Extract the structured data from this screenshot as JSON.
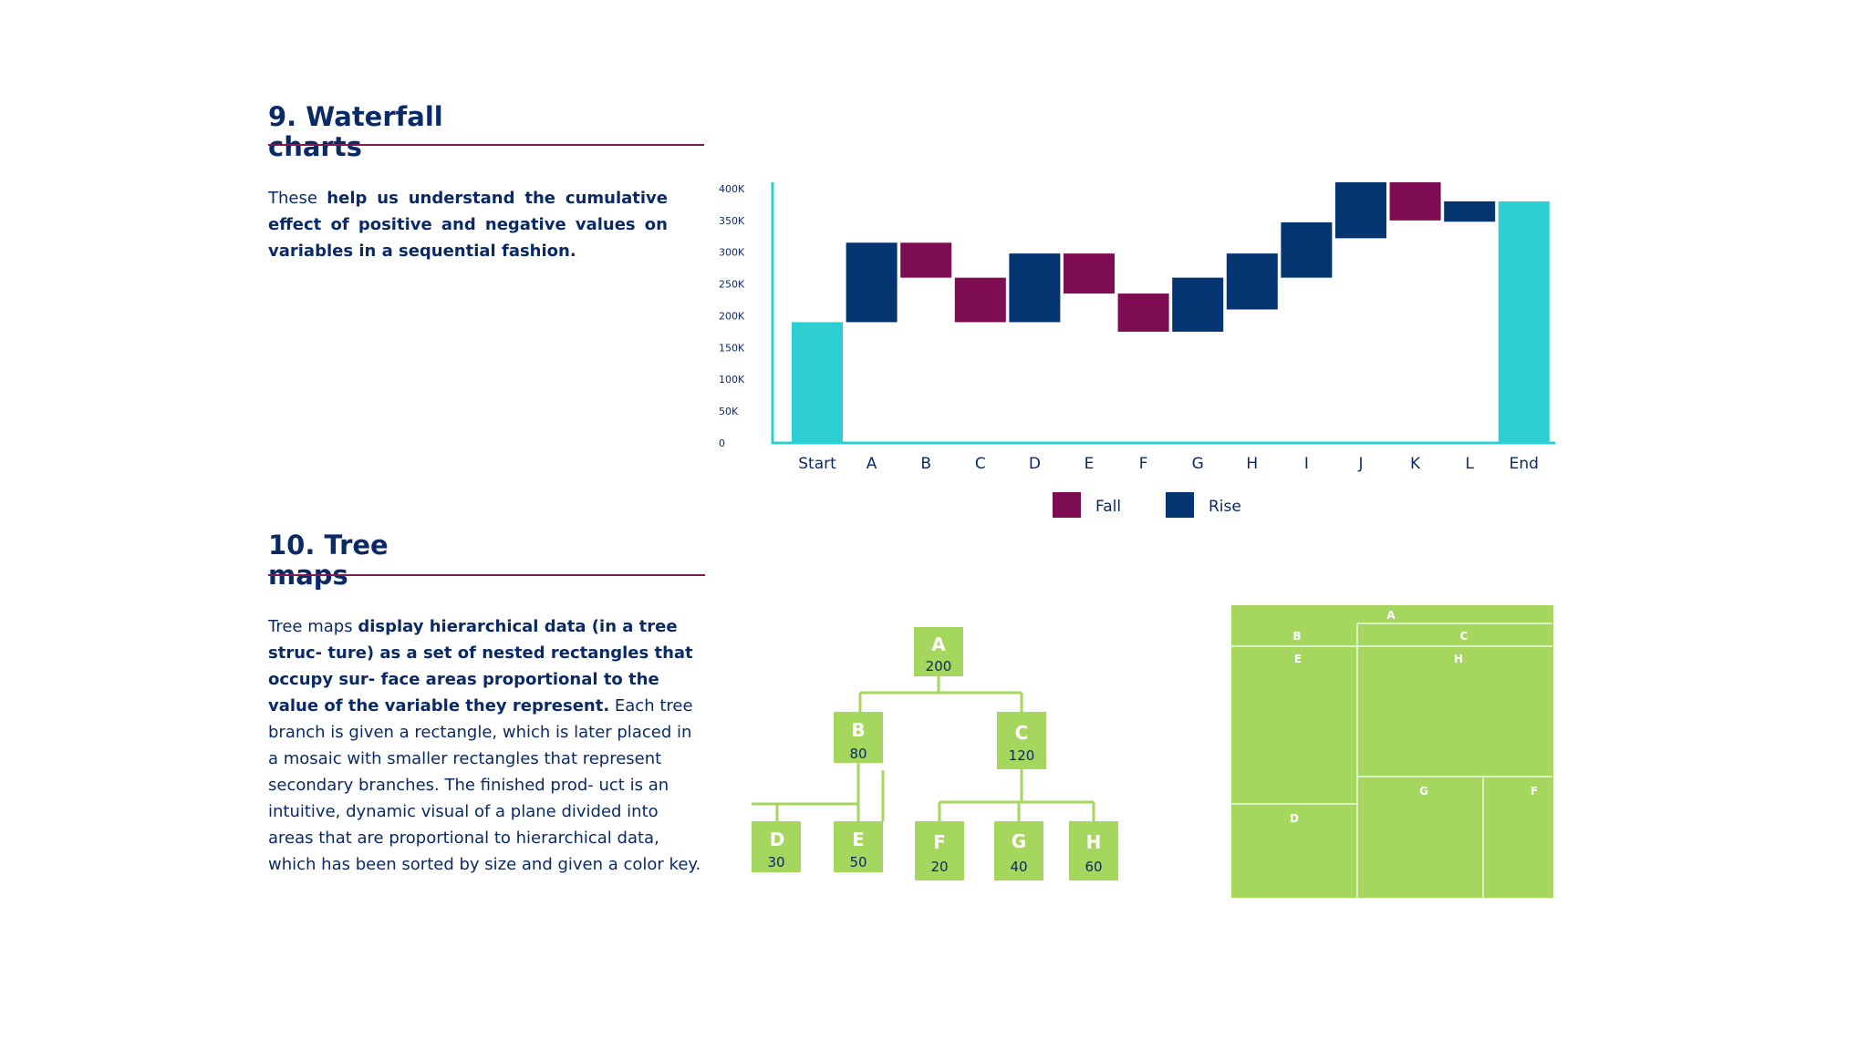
{
  "section9": {
    "heading_line1": "9. Waterfall",
    "heading_line2": "charts",
    "para_lead": "These ",
    "para_bold": "help us understand the cumulative effect of positive and negative values on variables in a sequential fashion."
  },
  "section10": {
    "heading_line1": "10. Tree",
    "heading_line2": "maps",
    "para_lead": "Tree maps ",
    "para_bold": "display hierarchical data (in a tree struc- ture) as a set of nested rectangles that occupy sur- face areas proportional to the value of the variable they represent.",
    "para_rest": " Each tree branch is given a rectangle, which is later placed in a mosaic with smaller rectangles that represent secondary branches. The finished prod- uct is an intuitive, dynamic visual of a plane divided into areas that are proportional to hierarchical data, which has been sorted by size and given a color key."
  },
  "colors": {
    "navy": "#0a2a66",
    "fall": "#7e0c52",
    "rise": "#043570",
    "total": "#2ecfd3",
    "axis": "#2ecfd3",
    "tree_green": "#a5d65e",
    "rule": "#7e1a52"
  },
  "chart_data": {
    "type": "bar",
    "subtype": "waterfall",
    "categories": [
      "Start",
      "A",
      "B",
      "C",
      "D",
      "E",
      "F",
      "G",
      "H",
      "I",
      "J",
      "K",
      "L",
      "End"
    ],
    "bars": [
      {
        "kind": "total",
        "low": 0,
        "high": 190000
      },
      {
        "kind": "rise",
        "low": 190000,
        "high": 315000
      },
      {
        "kind": "fall",
        "low": 260000,
        "high": 315000
      },
      {
        "kind": "fall",
        "low": 190000,
        "high": 260000
      },
      {
        "kind": "rise",
        "low": 190000,
        "high": 298000
      },
      {
        "kind": "fall",
        "low": 235000,
        "high": 298000
      },
      {
        "kind": "fall",
        "low": 175000,
        "high": 235000
      },
      {
        "kind": "rise",
        "low": 175000,
        "high": 260000
      },
      {
        "kind": "rise",
        "low": 210000,
        "high": 298000
      },
      {
        "kind": "rise",
        "low": 260000,
        "high": 347000
      },
      {
        "kind": "rise",
        "low": 322000,
        "high": 410000
      },
      {
        "kind": "fall",
        "low": 350000,
        "high": 410000
      },
      {
        "kind": "rise",
        "low": 348000,
        "high": 380000
      },
      {
        "kind": "total",
        "low": 0,
        "high": 380000
      }
    ],
    "yticks": [
      "0",
      "50K",
      "100K",
      "150K",
      "200K",
      "250K",
      "300K",
      "350K",
      "400K"
    ],
    "ytick_values": [
      0,
      50000,
      100000,
      150000,
      200000,
      250000,
      300000,
      350000,
      400000
    ],
    "ylim": [
      0,
      410000
    ],
    "legend": [
      {
        "name": "Fall",
        "color": "#7e0c52"
      },
      {
        "name": "Rise",
        "color": "#043570"
      }
    ],
    "legend_position": "bottom"
  },
  "tree": {
    "nodes": [
      {
        "id": "A",
        "label": "A",
        "value": "200"
      },
      {
        "id": "B",
        "label": "B",
        "value": "80"
      },
      {
        "id": "C",
        "label": "C",
        "value": "120"
      },
      {
        "id": "D",
        "label": "D",
        "value": "30"
      },
      {
        "id": "E",
        "label": "E",
        "value": "50"
      },
      {
        "id": "F",
        "label": "F",
        "value": "20"
      },
      {
        "id": "G",
        "label": "G",
        "value": "40"
      },
      {
        "id": "H",
        "label": "H",
        "value": "60"
      }
    ]
  },
  "treemap": {
    "labels": [
      "A",
      "B",
      "C",
      "E",
      "H",
      "D",
      "G",
      "F"
    ]
  }
}
